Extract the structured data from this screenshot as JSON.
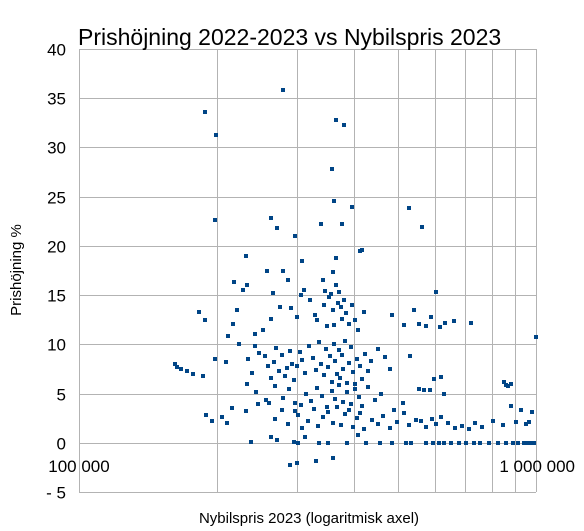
{
  "chart_data": {
    "type": "scatter",
    "title": "Prishöjning 2022-2023 vs Nybilspris 2023",
    "xlabel": "Nybilspris 2023 (logaritmisk axel)",
    "ylabel": "Prishöjning %",
    "x_scale": "log",
    "xlim": [
      100000,
      1000000
    ],
    "ylim": [
      -5,
      40
    ],
    "x_ticks": [
      {
        "value": 100000,
        "label": "100 000"
      },
      {
        "value": 1000000,
        "label": "1 000 000"
      }
    ],
    "y_ticks": [
      {
        "value": 40,
        "label": "40"
      },
      {
        "value": 35,
        "label": "35"
      },
      {
        "value": 30,
        "label": "30"
      },
      {
        "value": 25,
        "label": "25"
      },
      {
        "value": 20,
        "label": "20"
      },
      {
        "value": 15,
        "label": "15"
      },
      {
        "value": 10,
        "label": "10"
      },
      {
        "value": 5,
        "label": "5"
      },
      {
        "value": 0,
        "label": "0"
      },
      {
        "value": -5,
        "label": "- 5"
      }
    ],
    "grid": true,
    "legend": false,
    "marker_color": "#004586",
    "points": [
      [
        189000,
        33.6
      ],
      [
        199000,
        31.3
      ],
      [
        280000,
        35.8
      ],
      [
        365000,
        32.8
      ],
      [
        380000,
        32.3
      ],
      [
        198000,
        22.6
      ],
      [
        263000,
        22.8
      ],
      [
        271000,
        21.8
      ],
      [
        297000,
        21.0
      ],
      [
        338000,
        22.2
      ],
      [
        357000,
        27.8
      ],
      [
        362000,
        24.6
      ],
      [
        376000,
        22.2
      ],
      [
        395000,
        23.9
      ],
      [
        527000,
        23.8
      ],
      [
        562000,
        21.9
      ],
      [
        218000,
        16.3
      ],
      [
        232000,
        19.0
      ],
      [
        258000,
        17.4
      ],
      [
        280000,
        17.5
      ],
      [
        308000,
        18.5
      ],
      [
        342000,
        16.5
      ],
      [
        359000,
        17.3
      ],
      [
        365000,
        18.8
      ],
      [
        411000,
        19.5
      ],
      [
        417000,
        19.6
      ],
      [
        183000,
        13.3
      ],
      [
        189000,
        12.5
      ],
      [
        212000,
        10.8
      ],
      [
        217000,
        12.1
      ],
      [
        222000,
        13.5
      ],
      [
        228000,
        15.5
      ],
      [
        233000,
        16.0
      ],
      [
        243000,
        11.0
      ],
      [
        253000,
        11.5
      ],
      [
        263000,
        12.6
      ],
      [
        266000,
        15.2
      ],
      [
        276000,
        13.8
      ],
      [
        286000,
        16.5
      ],
      [
        291000,
        13.7
      ],
      [
        300000,
        12.8
      ],
      [
        306000,
        15.0
      ],
      [
        311000,
        15.5
      ],
      [
        320000,
        14.5
      ],
      [
        328000,
        13.0
      ],
      [
        331000,
        12.5
      ],
      [
        343000,
        14.0
      ],
      [
        346000,
        15.4
      ],
      [
        349000,
        11.9
      ],
      [
        353000,
        14.8
      ],
      [
        356000,
        15.1
      ],
      [
        360000,
        13.5
      ],
      [
        362000,
        12.0
      ],
      [
        365000,
        16.0
      ],
      [
        368000,
        14.2
      ],
      [
        371000,
        15.3
      ],
      [
        374000,
        13.8
      ],
      [
        377000,
        12.6
      ],
      [
        380000,
        14.5
      ],
      [
        384000,
        13.2
      ],
      [
        390000,
        12.1
      ],
      [
        396000,
        14.0
      ],
      [
        402000,
        12.5
      ],
      [
        408000,
        11.5
      ],
      [
        420000,
        13.3
      ],
      [
        485000,
        13.0
      ],
      [
        513000,
        12.0
      ],
      [
        540000,
        13.5
      ],
      [
        555000,
        12.1
      ],
      [
        574000,
        11.9
      ],
      [
        588000,
        12.8
      ],
      [
        603000,
        15.3
      ],
      [
        618000,
        11.8
      ],
      [
        632000,
        12.2
      ],
      [
        661000,
        12.4
      ],
      [
        720000,
        12.2
      ],
      [
        162000,
        8.0
      ],
      [
        164000,
        7.7
      ],
      [
        167000,
        7.5
      ],
      [
        172000,
        7.3
      ],
      [
        178000,
        7.0
      ],
      [
        187000,
        6.8
      ],
      [
        198000,
        8.5
      ],
      [
        210000,
        8.2
      ],
      [
        224000,
        10.0
      ],
      [
        234000,
        8.5
      ],
      [
        239000,
        7.1
      ],
      [
        243000,
        9.8
      ],
      [
        248000,
        9.1
      ],
      [
        255000,
        8.8
      ],
      [
        259000,
        7.8
      ],
      [
        263000,
        6.6
      ],
      [
        267000,
        8.2
      ],
      [
        270000,
        9.6
      ],
      [
        274000,
        7.3
      ],
      [
        278000,
        8.9
      ],
      [
        282000,
        6.8
      ],
      [
        285000,
        7.6
      ],
      [
        289000,
        9.3
      ],
      [
        292000,
        8.0
      ],
      [
        296000,
        6.4
      ],
      [
        300000,
        7.8
      ],
      [
        304000,
        9.2
      ],
      [
        308000,
        8.4
      ],
      [
        313000,
        7.1
      ],
      [
        319000,
        9.8
      ],
      [
        325000,
        8.6
      ],
      [
        330000,
        7.4
      ],
      [
        335000,
        10.2
      ],
      [
        339000,
        8.0
      ],
      [
        343000,
        6.9
      ],
      [
        347000,
        9.5
      ],
      [
        351000,
        7.7
      ],
      [
        355000,
        8.8
      ],
      [
        358000,
        6.2
      ],
      [
        361000,
        10.0
      ],
      [
        364000,
        8.3
      ],
      [
        367000,
        7.0
      ],
      [
        370000,
        9.4
      ],
      [
        373000,
        6.6
      ],
      [
        376000,
        8.9
      ],
      [
        379000,
        7.5
      ],
      [
        382000,
        10.3
      ],
      [
        385000,
        6.1
      ],
      [
        389000,
        8.1
      ],
      [
        393000,
        9.7
      ],
      [
        398000,
        7.2
      ],
      [
        402000,
        6.0
      ],
      [
        406000,
        8.5
      ],
      [
        411000,
        7.8
      ],
      [
        417000,
        6.5
      ],
      [
        422000,
        9.0
      ],
      [
        428000,
        7.3
      ],
      [
        435000,
        8.3
      ],
      [
        452000,
        9.5
      ],
      [
        468000,
        8.7
      ],
      [
        479000,
        7.5
      ],
      [
        530000,
        8.8
      ],
      [
        570000,
        5.4
      ],
      [
        598000,
        6.5
      ],
      [
        619000,
        6.7
      ],
      [
        233000,
        6.0
      ],
      [
        244000,
        5.2
      ],
      [
        256000,
        4.3
      ],
      [
        268000,
        5.8
      ],
      [
        279000,
        4.5
      ],
      [
        288000,
        5.5
      ],
      [
        297000,
        4.0
      ],
      [
        306000,
        3.8
      ],
      [
        314000,
        5.0
      ],
      [
        322000,
        4.2
      ],
      [
        331000,
        5.6
      ],
      [
        340000,
        4.8
      ],
      [
        348000,
        3.6
      ],
      [
        357000,
        5.3
      ],
      [
        363000,
        4.4
      ],
      [
        370000,
        5.9
      ],
      [
        378000,
        4.1
      ],
      [
        386000,
        5.2
      ],
      [
        394000,
        3.9
      ],
      [
        401000,
        5.5
      ],
      [
        409000,
        4.6
      ],
      [
        416000,
        3.7
      ],
      [
        430000,
        5.7
      ],
      [
        445000,
        4.3
      ],
      [
        458000,
        5.0
      ],
      [
        490000,
        3.3
      ],
      [
        512000,
        4.0
      ],
      [
        555000,
        5.5
      ],
      [
        587000,
        5.4
      ],
      [
        630000,
        5.0
      ],
      [
        850000,
        6.2
      ],
      [
        860000,
        5.9
      ],
      [
        870000,
        5.8
      ],
      [
        880000,
        6.0
      ],
      [
        190000,
        2.8
      ],
      [
        195000,
        2.2
      ],
      [
        206000,
        2.6
      ],
      [
        211000,
        2.0
      ],
      [
        216000,
        3.5
      ],
      [
        232000,
        3.2
      ],
      [
        247000,
        3.9
      ],
      [
        261000,
        4.0
      ],
      [
        269000,
        2.4
      ],
      [
        278000,
        3.3
      ],
      [
        287000,
        1.9
      ],
      [
        297000,
        3.2
      ],
      [
        302000,
        2.8
      ],
      [
        308000,
        1.5
      ],
      [
        317000,
        2.2
      ],
      [
        326000,
        3.4
      ],
      [
        333000,
        1.7
      ],
      [
        342000,
        2.6
      ],
      [
        351000,
        3.1
      ],
      [
        359000,
        2.0
      ],
      [
        367000,
        3.6
      ],
      [
        375000,
        1.8
      ],
      [
        382000,
        2.9
      ],
      [
        390000,
        3.3
      ],
      [
        398000,
        1.6
      ],
      [
        406000,
        2.5
      ],
      [
        413000,
        3.0
      ],
      [
        421000,
        1.4
      ],
      [
        438000,
        2.3
      ],
      [
        451000,
        1.9
      ],
      [
        463000,
        2.7
      ],
      [
        480000,
        1.5
      ],
      [
        496000,
        2.1
      ],
      [
        514000,
        3.0
      ],
      [
        528000,
        1.8
      ],
      [
        545000,
        2.3
      ],
      [
        560000,
        2.2
      ],
      [
        575000,
        1.6
      ],
      [
        592000,
        2.4
      ],
      [
        605000,
        1.9
      ],
      [
        620000,
        2.6
      ],
      [
        641000,
        2.0
      ],
      [
        664000,
        1.5
      ],
      [
        688000,
        1.7
      ],
      [
        713000,
        1.4
      ],
      [
        737000,
        2.0
      ],
      [
        760000,
        1.6
      ],
      [
        805000,
        2.2
      ],
      [
        845000,
        1.8
      ],
      [
        882000,
        3.7
      ],
      [
        905000,
        2.1
      ],
      [
        928000,
        3.3
      ],
      [
        952000,
        1.9
      ],
      [
        965000,
        2.1
      ],
      [
        980000,
        3.1
      ],
      [
        238000,
        0.1
      ],
      [
        263000,
        0.6
      ],
      [
        271000,
        0.3
      ],
      [
        295000,
        0.1
      ],
      [
        302000,
        0.0
      ],
      [
        312000,
        0.6
      ],
      [
        335000,
        0.0
      ],
      [
        350000,
        0.0
      ],
      [
        385000,
        0.0
      ],
      [
        408000,
        0.8
      ],
      [
        425000,
        0.0
      ],
      [
        455000,
        0.0
      ],
      [
        485000,
        0.0
      ],
      [
        520000,
        0.0
      ],
      [
        533000,
        0.0
      ],
      [
        575000,
        0.0
      ],
      [
        594000,
        0.0
      ],
      [
        612000,
        0.0
      ],
      [
        630000,
        0.0
      ],
      [
        652000,
        0.0
      ],
      [
        678000,
        0.0
      ],
      [
        703000,
        0.0
      ],
      [
        730000,
        0.0
      ],
      [
        756000,
        0.0
      ],
      [
        790000,
        0.0
      ],
      [
        825000,
        0.0
      ],
      [
        861000,
        0.0
      ],
      [
        892000,
        0.0
      ],
      [
        915000,
        0.0
      ],
      [
        940000,
        0.0
      ],
      [
        958000,
        0.0
      ],
      [
        975000,
        0.0
      ],
      [
        990000,
        0.0
      ],
      [
        290000,
        -2.3
      ],
      [
        300000,
        -2.1
      ],
      [
        330000,
        -1.9
      ],
      [
        360000,
        -1.5
      ],
      [
        998000,
        10.7
      ]
    ]
  }
}
